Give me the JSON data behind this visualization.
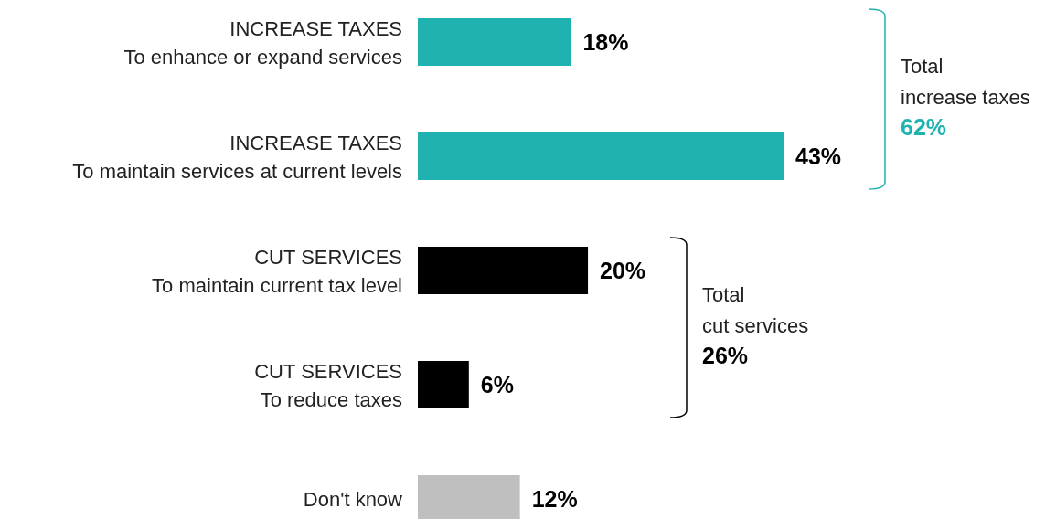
{
  "chart_data": {
    "type": "bar",
    "orientation": "horizontal",
    "categories": [
      "INCREASE TAXES\nTo enhance or expand services",
      "INCREASE TAXES\nTo maintain services at current levels",
      "CUT SERVICES\nTo maintain current tax level",
      "CUT SERVICES\nTo reduce taxes",
      "Don't know"
    ],
    "values": [
      18,
      43,
      20,
      6,
      12
    ],
    "colors": [
      "#20b2b0",
      "#20b2b0",
      "#000000",
      "#000000",
      "#bfbfbf"
    ],
    "value_labels": [
      "18%",
      "43%",
      "20%",
      "6%",
      "12%"
    ],
    "annotations": [
      "Total\nincrease taxes\n62%",
      "Total\ncut services\n26%"
    ]
  }
}
